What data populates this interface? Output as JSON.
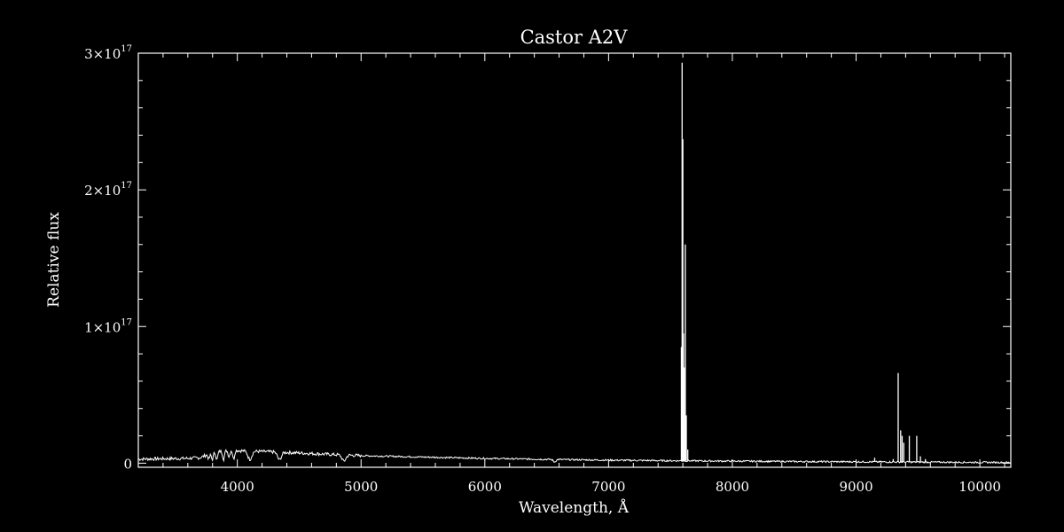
{
  "chart_data": {
    "type": "line",
    "title": "Castor  A2V",
    "xlabel": "Wavelength, Å",
    "ylabel": "Relative flux",
    "xlim": [
      3200,
      10250
    ],
    "ylim": [
      -3000000000000000.0,
      3e+17
    ],
    "grid": false,
    "x_ticks": [
      4000,
      5000,
      6000,
      7000,
      8000,
      9000,
      10000
    ],
    "x_tick_labels": [
      "4000",
      "5000",
      "6000",
      "7000",
      "8000",
      "9000",
      "10000"
    ],
    "y_ticks": [
      0,
      1e+17,
      2e+17,
      3e+17
    ],
    "y_tick_labels": [
      {
        "base": "0",
        "exp": ""
      },
      {
        "base": "1×10",
        "exp": "17"
      },
      {
        "base": "2×10",
        "exp": "17"
      },
      {
        "base": "3×10",
        "exp": "17"
      }
    ],
    "series": [
      {
        "color": "#ffffff",
        "continuum": [
          [
            3200,
            3000000000000000.0
          ],
          [
            3600,
            3500000000000000.0
          ],
          [
            3700,
            4000000000000000.0
          ],
          [
            3750,
            6000000000000000.0
          ],
          [
            3850,
            8500000000000000.0
          ],
          [
            3950,
            9500000000000000.0
          ],
          [
            4050,
            9000000000000000.0
          ],
          [
            4200,
            8500000000000000.0
          ],
          [
            4500,
            7500000000000000.0
          ],
          [
            4800,
            6200000000000000.0
          ],
          [
            5000,
            5500000000000000.0
          ],
          [
            5500,
            4500000000000000.0
          ],
          [
            6000,
            3500000000000000.0
          ],
          [
            6500,
            2800000000000000.0
          ],
          [
            7000,
            2200000000000000.0
          ],
          [
            7500,
            1800000000000000.0
          ],
          [
            8000,
            1500000000000000.0
          ],
          [
            8500,
            1200000000000000.0
          ],
          [
            9000,
            1000000000000000.0
          ],
          [
            9500,
            800000000000000.0
          ],
          [
            10250,
            500000000000000.0
          ]
        ],
        "absorption_lines": [
          {
            "x": 3770,
            "depth": 3500000000000000.0
          },
          {
            "x": 3798,
            "depth": 4500000000000000.0
          },
          {
            "x": 3835,
            "depth": 5500000000000000.0
          },
          {
            "x": 3889,
            "depth": 6000000000000000.0
          },
          {
            "x": 3933,
            "depth": 4500000000000000.0
          },
          {
            "x": 3970,
            "depth": 6500000000000000.0
          },
          {
            "x": 4101,
            "depth": 6000000000000000.0
          },
          {
            "x": 4340,
            "depth": 5500000000000000.0
          },
          {
            "x": 4861,
            "depth": 4500000000000000.0
          },
          {
            "x": 6563,
            "depth": 1800000000000000.0
          }
        ],
        "spikes": [
          {
            "x": 7594,
            "y": 2.93e+17
          },
          {
            "x": 7600,
            "y": 2.37e+17
          },
          {
            "x": 7588,
            "y": 8.5e+16
          },
          {
            "x": 7605,
            "y": 9.5e+16
          },
          {
            "x": 7620,
            "y": 1.6e+17
          },
          {
            "x": 7612,
            "y": 7e+16
          },
          {
            "x": 7628,
            "y": 3.5e+16
          },
          {
            "x": 7640,
            "y": 1e+16
          },
          {
            "x": 9340,
            "y": 6.6e+16
          },
          {
            "x": 9360,
            "y": 2.4e+16
          },
          {
            "x": 9372,
            "y": 2e+16
          },
          {
            "x": 9385,
            "y": 1.5e+16
          },
          {
            "x": 9430,
            "y": 2e+16
          },
          {
            "x": 9490,
            "y": 2e+16
          },
          {
            "x": 9520,
            "y": 5000000000000000.0
          },
          {
            "x": 9560,
            "y": 3000000000000000.0
          },
          {
            "x": 9300,
            "y": 3000000000000000.0
          },
          {
            "x": 9150,
            "y": 4000000000000000.0
          }
        ]
      }
    ]
  }
}
